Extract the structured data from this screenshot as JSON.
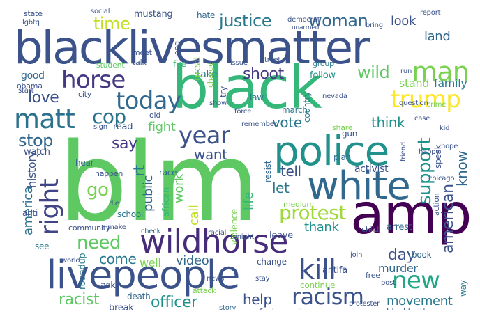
{
  "word_cloud": {
    "words": [
      {
        "text": "blm",
        "color": "#5ec962"
      },
      {
        "text": "blacklivesmatter",
        "color": "#3b528b"
      },
      {
        "text": "black",
        "color": "#35b779"
      },
      {
        "text": "amp",
        "color": "#440154"
      },
      {
        "text": "livepeople",
        "color": "#3b528b"
      },
      {
        "text": "police",
        "color": "#21918c"
      },
      {
        "text": "white",
        "color": "#31688e"
      },
      {
        "text": "wildhorse",
        "color": "#472c7a"
      },
      {
        "text": "matt",
        "color": "#2c728e"
      },
      {
        "text": "horse",
        "color": "#443983"
      },
      {
        "text": "man",
        "color": "#7ad151"
      },
      {
        "text": "trump",
        "color": "#fde725"
      },
      {
        "text": "kill",
        "color": "#3b528b"
      },
      {
        "text": "new",
        "color": "#21a685"
      },
      {
        "text": "racism",
        "color": "#3b528b"
      },
      {
        "text": "right",
        "color": "#414487"
      },
      {
        "text": "today",
        "color": "#31688e"
      },
      {
        "text": "year",
        "color": "#3b528b"
      },
      {
        "text": "protest",
        "color": "#a0da39"
      },
      {
        "text": "justice",
        "color": "#2a788e"
      },
      {
        "text": "woman",
        "color": "#31688e"
      },
      {
        "text": "cop",
        "color": "#2c728e"
      },
      {
        "text": "time",
        "color": "#c2df23"
      },
      {
        "text": "shoot",
        "color": "#443983"
      },
      {
        "text": "wild",
        "color": "#5ec962"
      },
      {
        "text": "support",
        "color": "#21918c"
      },
      {
        "text": "american",
        "color": "#3b528b"
      },
      {
        "text": "know",
        "color": "#31688e"
      },
      {
        "text": "say",
        "color": "#443983"
      },
      {
        "text": "want",
        "color": "#3b528b"
      },
      {
        "text": "vote",
        "color": "#2a788e"
      },
      {
        "text": "think",
        "color": "#21918c"
      },
      {
        "text": "stop",
        "color": "#31688e"
      },
      {
        "text": "love",
        "color": "#3b528b"
      },
      {
        "text": "go",
        "color": "#7ad151"
      },
      {
        "text": "need",
        "color": "#5ec962"
      },
      {
        "text": "come",
        "color": "#2a788e"
      },
      {
        "text": "video",
        "color": "#31688e"
      },
      {
        "text": "officer",
        "color": "#21918c"
      },
      {
        "text": "racist",
        "color": "#5ec962"
      },
      {
        "text": "help",
        "color": "#3b528b"
      },
      {
        "text": "movement",
        "color": "#2a788e"
      },
      {
        "text": "day",
        "color": "#3b528b"
      },
      {
        "text": "murder",
        "color": "#31688e"
      },
      {
        "text": "tell",
        "color": "#3b528b"
      },
      {
        "text": "let",
        "color": "#2a788e"
      },
      {
        "text": "thank",
        "color": "#21918c"
      },
      {
        "text": "america",
        "color": "#2c728e"
      },
      {
        "text": "history",
        "color": "#3b528b"
      },
      {
        "text": "public",
        "color": "#31688e"
      },
      {
        "text": "work",
        "color": "#5ec962"
      },
      {
        "text": "call",
        "color": "#c2df23"
      },
      {
        "text": "rt",
        "color": "#2a788e"
      },
      {
        "text": "fight",
        "color": "#5ec962"
      },
      {
        "text": "family",
        "color": "#2a788e"
      },
      {
        "text": "stand",
        "color": "#7ad151"
      },
      {
        "text": "land",
        "color": "#31688e"
      },
      {
        "text": "look",
        "color": "#3b528b"
      },
      {
        "text": "life",
        "color": "#35b779"
      },
      {
        "text": "well",
        "color": "#7ad151"
      },
      {
        "text": "state",
        "color": "#3b528b"
      },
      {
        "text": "mustang",
        "color": "#3b528b"
      },
      {
        "text": "hate",
        "color": "#31688e"
      },
      {
        "text": "democrat",
        "color": "#3b528b"
      },
      {
        "text": "good",
        "color": "#31688e"
      },
      {
        "text": "obama",
        "color": "#3b528b"
      },
      {
        "text": "take",
        "color": "#2a788e"
      },
      {
        "text": "fire",
        "color": "#35b779"
      },
      {
        "text": "talk",
        "color": "#3b528b"
      },
      {
        "text": "student",
        "color": "#5ec962"
      },
      {
        "text": "issue",
        "color": "#3b528b"
      },
      {
        "text": "group",
        "color": "#2a788e"
      },
      {
        "text": "follow",
        "color": "#21918c"
      },
      {
        "text": "city",
        "color": "#3b528b"
      },
      {
        "text": "old",
        "color": "#3b528b"
      },
      {
        "text": "read",
        "color": "#3b528b"
      },
      {
        "text": "hear",
        "color": "#31688e"
      },
      {
        "text": "watch",
        "color": "#3b528b"
      },
      {
        "text": "anti",
        "color": "#3b528b"
      },
      {
        "text": "happen",
        "color": "#3b528b"
      },
      {
        "text": "race",
        "color": "#31688e"
      },
      {
        "text": "school",
        "color": "#2a788e"
      },
      {
        "text": "african",
        "color": "#35b779"
      },
      {
        "text": "community",
        "color": "#3b528b"
      },
      {
        "text": "make",
        "color": "#3b528b"
      },
      {
        "text": "check",
        "color": "#31688e"
      },
      {
        "text": "leave",
        "color": "#3b528b"
      },
      {
        "text": "change",
        "color": "#3b528b"
      },
      {
        "text": "see",
        "color": "#2a788e"
      },
      {
        "text": "world",
        "color": "#3b528b"
      },
      {
        "text": "roundup",
        "color": "#2a788e"
      },
      {
        "text": "ask",
        "color": "#3b528b"
      },
      {
        "text": "break",
        "color": "#3b528b"
      },
      {
        "text": "death",
        "color": "#31688e"
      },
      {
        "text": "attack",
        "color": "#7ad151"
      },
      {
        "text": "plan",
        "color": "#31688e"
      },
      {
        "text": "activist",
        "color": "#3b528b"
      },
      {
        "text": "gun",
        "color": "#3b528b"
      },
      {
        "text": "march",
        "color": "#2a788e"
      },
      {
        "text": "share",
        "color": "#7ad151"
      },
      {
        "text": "child",
        "color": "#3b528b"
      },
      {
        "text": "arrest",
        "color": "#31688e"
      },
      {
        "text": "antifa",
        "color": "#3b528b"
      },
      {
        "text": "free",
        "color": "#3b528b"
      },
      {
        "text": "continue",
        "color": "#7ad151"
      },
      {
        "text": "book",
        "color": "#31688e"
      },
      {
        "text": "blacktwitter",
        "color": "#3b528b"
      },
      {
        "text": "protester",
        "color": "#3b528b"
      },
      {
        "text": "believe",
        "color": "#7ad151"
      },
      {
        "text": "fuck",
        "color": "#3b528b"
      },
      {
        "text": "story",
        "color": "#31688e"
      },
      {
        "text": "post",
        "color": "#3b528b"
      },
      {
        "text": "country",
        "color": "#2a788e"
      },
      {
        "text": "law",
        "color": "#2a788e"
      },
      {
        "text": "try",
        "color": "#3b528b"
      },
      {
        "text": "question",
        "color": "#3b528b"
      },
      {
        "text": "friend",
        "color": "#3b528b"
      },
      {
        "text": "speak",
        "color": "#3b528b"
      },
      {
        "text": "way",
        "color": "#2a788e"
      },
      {
        "text": "action",
        "color": "#3b528b"
      },
      {
        "text": "run",
        "color": "#3b528b"
      },
      {
        "text": "medium",
        "color": "#7ad151"
      },
      {
        "text": "resist",
        "color": "#31688e"
      },
      {
        "text": "violence",
        "color": "#7ad151"
      },
      {
        "text": "start",
        "color": "#3b528b"
      },
      {
        "text": "great",
        "color": "#7ad151"
      },
      {
        "text": "meet",
        "color": "#3b528b"
      },
      {
        "text": "long",
        "color": "#3b528b"
      },
      {
        "text": "lgbtq",
        "color": "#3b528b"
      },
      {
        "text": "social",
        "color": "#3b528b"
      },
      {
        "text": "report",
        "color": "#3b528b"
      },
      {
        "text": "unarmed",
        "color": "#3b528b"
      },
      {
        "text": "charge",
        "color": "#7ad151"
      },
      {
        "text": "street",
        "color": "#3b528b"
      },
      {
        "text": "nevada",
        "color": "#3b528b"
      },
      {
        "text": "bring",
        "color": "#3b528b"
      },
      {
        "text": "force",
        "color": "#3b528b"
      },
      {
        "text": "show",
        "color": "#3b528b"
      },
      {
        "text": "tonight",
        "color": "#3b528b"
      },
      {
        "text": "remember",
        "color": "#3b528b"
      },
      {
        "text": "join",
        "color": "#3b528b"
      },
      {
        "text": "stay",
        "color": "#3b528b"
      },
      {
        "text": "racial",
        "color": "#3b528b"
      },
      {
        "text": "die",
        "color": "#3b528b"
      },
      {
        "text": "news",
        "color": "#3b528b"
      },
      {
        "text": "sign",
        "color": "#3b528b"
      },
      {
        "text": "chicago",
        "color": "#3b528b"
      },
      {
        "text": "kid",
        "color": "#3b528b"
      },
      {
        "text": "case",
        "color": "#3b528b"
      },
      {
        "text": "crime",
        "color": "#7ad151"
      },
      {
        "text": "hope",
        "color": "#3b528b"
      },
      {
        "text": "happy",
        "color": "#3b528b"
      }
    ]
  }
}
